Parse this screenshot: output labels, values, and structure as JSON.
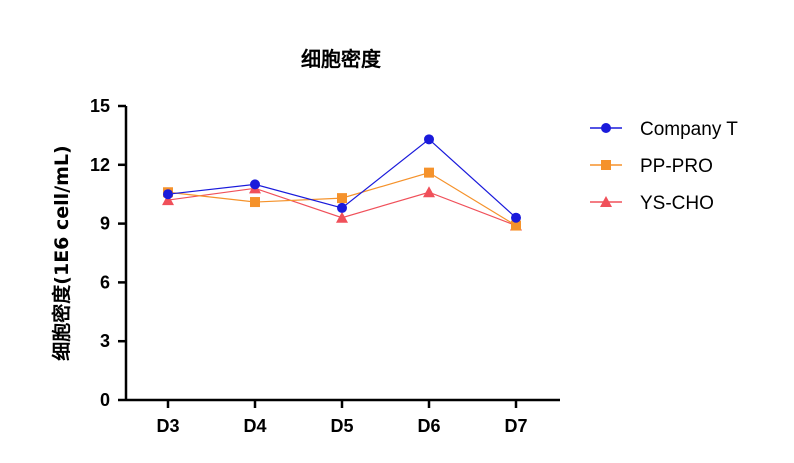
{
  "chart_data": {
    "type": "line",
    "title": "细胞密度",
    "xlabel": "",
    "ylabel": "细胞密度(1E6 cell/mL)",
    "categories": [
      "D3",
      "D4",
      "D5",
      "D6",
      "D7"
    ],
    "ylim": [
      0,
      15
    ],
    "yticks": [
      "0",
      "3",
      "6",
      "9",
      "12",
      "15"
    ],
    "grid": false,
    "legend": "right",
    "series": [
      {
        "name": "Company T",
        "values": [
          10.5,
          11.0,
          9.8,
          13.3,
          9.3
        ],
        "color": "#1a1adb",
        "marker": "circle"
      },
      {
        "name": "PP-PRO",
        "values": [
          10.6,
          10.1,
          10.3,
          11.6,
          8.9
        ],
        "color": "#f5922b",
        "marker": "square"
      },
      {
        "name": "YS-CHO",
        "values": [
          10.2,
          10.8,
          9.3,
          10.6,
          8.9
        ],
        "color": "#f0505a",
        "marker": "triangle"
      }
    ]
  }
}
